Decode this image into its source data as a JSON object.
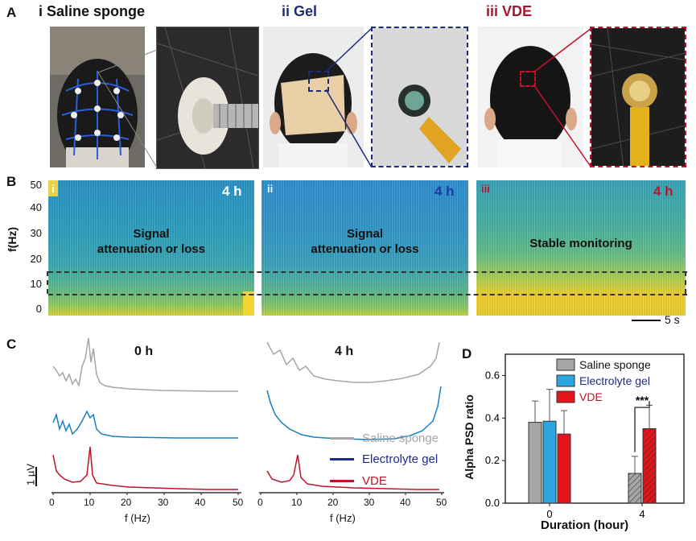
{
  "panel_labels": {
    "a": "A",
    "b": "B",
    "c": "C",
    "d": "D"
  },
  "panel_a": {
    "titles": [
      "i Saline sponge",
      "ii Gel",
      "iii VDE"
    ],
    "title_colors": [
      "#333333",
      "#1f2a7a",
      "#a3192b"
    ]
  },
  "panel_b": {
    "ylabel": "f(Hz)",
    "yticks": [
      "50",
      "40",
      "30",
      "20",
      "10",
      "0"
    ],
    "subs": [
      {
        "roman": "i",
        "time": "4 h",
        "text_line1": "Signal",
        "text_line2": "attenuation or loss",
        "time_color": "#ffffff"
      },
      {
        "roman": "ii",
        "time": "4 h",
        "text_line1": "Signal",
        "text_line2": "attenuation or loss",
        "time_color": "#1f3aa8"
      },
      {
        "roman": "iii",
        "time": "4 h",
        "text_line1": "Stable monitoring",
        "text_line2": "",
        "time_color": "#c0122b"
      }
    ],
    "scalebar": "5 s"
  },
  "panel_c": {
    "titles": [
      "0 h",
      "4 h"
    ],
    "xlabel": "f (Hz)",
    "xticks": [
      "0",
      "10",
      "20",
      "30",
      "40",
      "50"
    ],
    "scale_label": "1 µV",
    "legend": [
      {
        "label": "Saline sponge",
        "color": "#a6a6a6",
        "text_color": "#a6a6a6"
      },
      {
        "label": "Electrolyte gel",
        "color": "#1f2a8a",
        "text_color": "#1f2a8a"
      },
      {
        "label": "VDE",
        "color": "#c0122b",
        "text_color": "#c0122b"
      }
    ]
  },
  "chart_data": {
    "type": "bar",
    "xlabel": "Duration (hour)",
    "ylabel": "Alpha PSD ratio",
    "categories": [
      "0",
      "4"
    ],
    "ylim": [
      0.0,
      0.7
    ],
    "yticks": [
      "0.0",
      "0.2",
      "0.4",
      "0.6"
    ],
    "series": [
      {
        "name": "Saline sponge",
        "color": "#a6a6a6",
        "values": [
          0.38,
          0.14
        ],
        "errors": [
          0.1,
          0.08
        ]
      },
      {
        "name": "Electrolyte gel",
        "color": "#2aa6e0",
        "values": [
          0.385,
          null
        ],
        "errors": [
          0.15,
          null
        ]
      },
      {
        "name": "VDE",
        "color": "#e3141b",
        "values": [
          0.325,
          0.35
        ],
        "errors": [
          0.11,
          0.11
        ]
      }
    ],
    "significance": "***",
    "legend_position": "top-right"
  }
}
